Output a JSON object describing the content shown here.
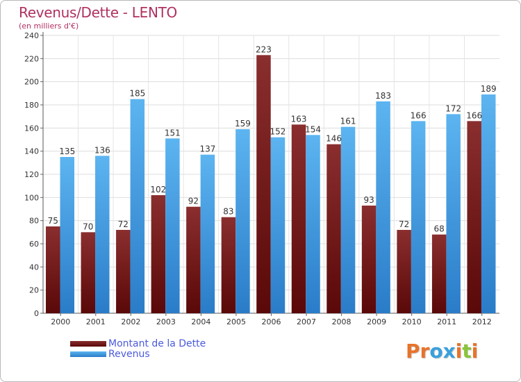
{
  "header": {
    "title": "Revenus/Dette - LENTO",
    "subtitle": "(en milliers d'€)"
  },
  "legend": {
    "items": [
      {
        "label": "Montant de la Dette",
        "color": "#7a1a1a"
      },
      {
        "label": "Revenus",
        "color": "#3a9ee8"
      }
    ]
  },
  "logo": {
    "text": "Proxiti",
    "colors": [
      "#e8732a",
      "#e8732a",
      "#3aa0dc",
      "#3aa0dc",
      "#e8732a",
      "#8ac43a",
      "#e8732a"
    ]
  },
  "chart_data": {
    "type": "bar",
    "categories": [
      "2000",
      "2001",
      "2002",
      "2003",
      "2004",
      "2005",
      "2006",
      "2007",
      "2008",
      "2009",
      "2010",
      "2011",
      "2012"
    ],
    "series": [
      {
        "name": "Montant de la Dette",
        "color": "#7a1a1a",
        "values": [
          75,
          70,
          72,
          102,
          92,
          83,
          223,
          163,
          146,
          93,
          72,
          68,
          166
        ]
      },
      {
        "name": "Revenus",
        "color": "#3a9ee8",
        "values": [
          135,
          136,
          185,
          151,
          137,
          159,
          152,
          154,
          161,
          183,
          166,
          172,
          189
        ]
      }
    ],
    "yticks": [
      0,
      20,
      40,
      60,
      80,
      100,
      120,
      140,
      160,
      180,
      200,
      220,
      240
    ],
    "ylim": [
      0,
      240
    ],
    "grid": true,
    "legend_position": "bottom-left"
  }
}
